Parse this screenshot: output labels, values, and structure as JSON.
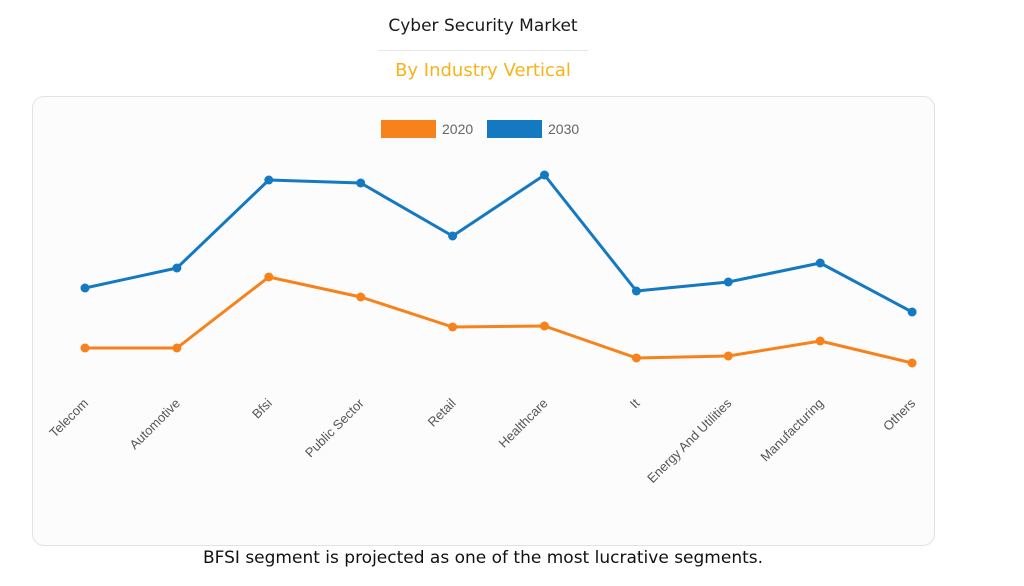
{
  "header": {
    "title": "Cyber Security Market",
    "subtitle": "By Industry Vertical"
  },
  "caption": "BFSI segment is projected as one of the most lucrative segments.",
  "colors": {
    "series_2020": "#f7821b",
    "series_2030": "#1479c1",
    "subtitle": "#f5b41a"
  },
  "chart_data": {
    "type": "line",
    "title": "Cyber Security Market",
    "subtitle": "By Industry Vertical",
    "xlabel": "",
    "ylabel": "",
    "ylim": [
      0,
      120
    ],
    "grid": false,
    "legend": "top-center",
    "categories": [
      "Telecom",
      "Automotive",
      "Bfsi",
      "Public Sector",
      "Retail",
      "Healthcare",
      "It",
      "Energy And Utilities",
      "Manufacturing",
      "Others"
    ],
    "series": [
      {
        "name": "2020",
        "color": "#f7821b",
        "values": [
          26,
          26,
          61.5,
          51.5,
          36.5,
          37,
          21,
          22,
          29.5,
          18.5
        ]
      },
      {
        "name": "2030",
        "color": "#1479c1",
        "values": [
          56,
          66,
          110,
          108.5,
          82,
          112.5,
          54.5,
          59,
          68.5,
          44
        ]
      }
    ]
  }
}
